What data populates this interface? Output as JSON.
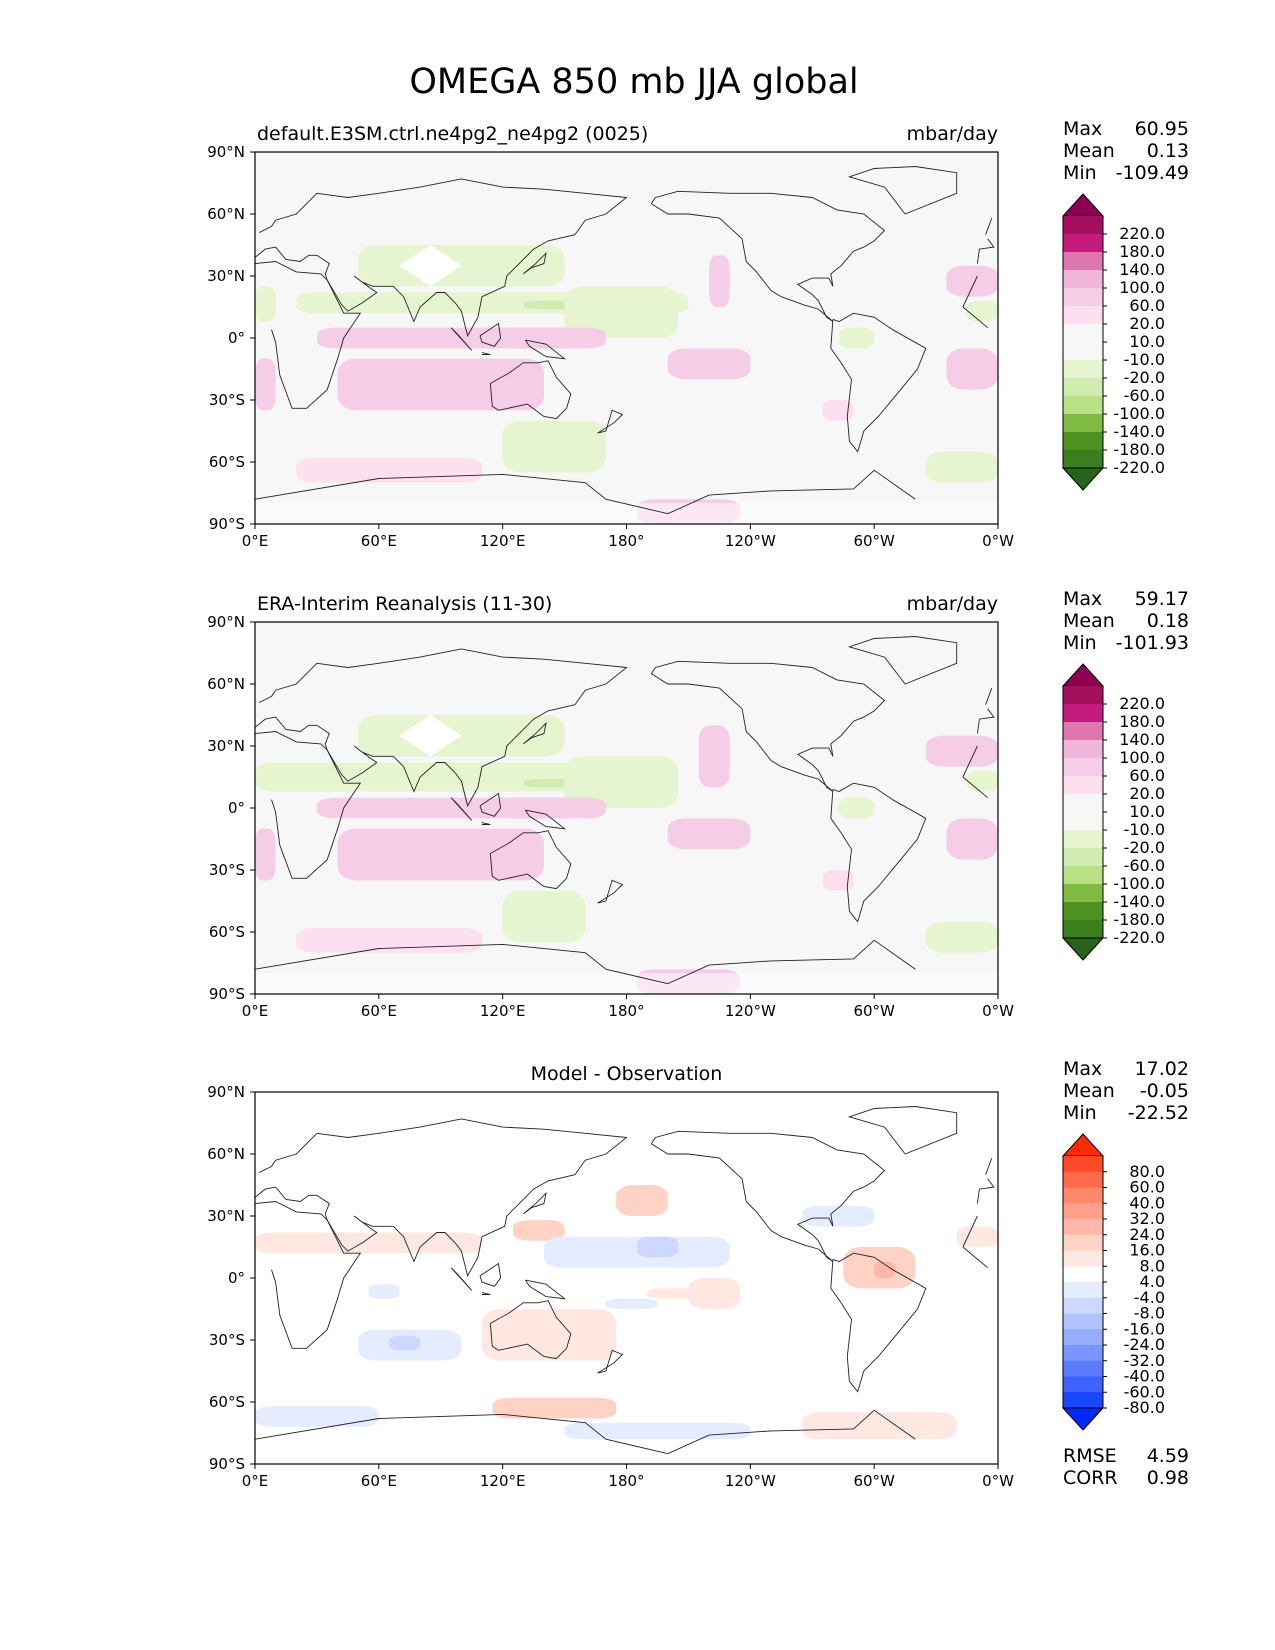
{
  "figure": {
    "title": "OMEGA 850 mb JJA global",
    "panels": [
      {
        "id": "test",
        "left_title": "default.E3SM.ctrl.ne4pg2_ne4pg2 (0025)",
        "center_title": "",
        "right_title": "mbar/day",
        "stats": [
          {
            "label": "Max",
            "value": "60.95"
          },
          {
            "label": "Mean",
            "value": "0.13"
          },
          {
            "label": "Min",
            "value": "-109.49"
          }
        ],
        "extra_stats": [],
        "colormap": "green-pink"
      },
      {
        "id": "reference",
        "left_title": "ERA-Interim Reanalysis (11-30)",
        "center_title": "",
        "right_title": "mbar/day",
        "stats": [
          {
            "label": "Max",
            "value": "59.17"
          },
          {
            "label": "Mean",
            "value": "0.18"
          },
          {
            "label": "Min",
            "value": "-101.93"
          }
        ],
        "extra_stats": [],
        "colormap": "green-pink"
      },
      {
        "id": "difference",
        "left_title": "",
        "center_title": "Model - Observation",
        "right_title": "",
        "stats": [
          {
            "label": "Max",
            "value": "17.02"
          },
          {
            "label": "Mean",
            "value": "-0.05"
          },
          {
            "label": "Min",
            "value": "-22.52"
          }
        ],
        "extra_stats": [
          {
            "label": "RMSE",
            "value": "4.59"
          },
          {
            "label": "CORR",
            "value": "0.98"
          }
        ],
        "colormap": "blue-red"
      }
    ],
    "colormaps": {
      "green-pink": {
        "labels": [
          "220.0",
          "180.0",
          "140.0",
          "100.0",
          "60.0",
          "20.0",
          "10.0",
          "-10.0",
          "-20.0",
          "-60.0",
          "-100.0",
          "-140.0",
          "-180.0",
          "-220.0"
        ],
        "colors": [
          "#8e0152",
          "#a3115e",
          "#c51b7d",
          "#de77ae",
          "#f1b6da",
          "#f5cde6",
          "#fde0ef",
          "#f7f7f7",
          "#f7f7f7",
          "#e6f5d0",
          "#d0ecb0",
          "#b8e186",
          "#7fbc41",
          "#4d9221",
          "#3a7e1d",
          "#276419"
        ]
      },
      "blue-red": {
        "labels": [
          "80.0",
          "60.0",
          "40.0",
          "32.0",
          "24.0",
          "16.0",
          "8.0",
          "4.0",
          "-4.0",
          "-8.0",
          "-16.0",
          "-24.0",
          "-32.0",
          "-40.0",
          "-60.0",
          "-80.0"
        ],
        "colors": [
          "#ff2a00",
          "#ff4a2a",
          "#ff6a4a",
          "#ff8a6a",
          "#ffa08a",
          "#ffb8a8",
          "#ffd2c6",
          "#ffe8e2",
          "#ffffff",
          "#e6ecff",
          "#ccd8ff",
          "#b0c2ff",
          "#96adff",
          "#7a96ff",
          "#5c7cff",
          "#3d62ff",
          "#1a46ff",
          "#0028ff"
        ]
      }
    },
    "axes": {
      "lon_ticks": [
        "0°E",
        "60°E",
        "120°E",
        "180°",
        "120°W",
        "60°W",
        "0°W"
      ],
      "lat_ticks": [
        "90°N",
        "60°N",
        "30°N",
        "0°",
        "30°S",
        "60°S",
        "90°S"
      ]
    }
  },
  "chart_data": [
    {
      "type": "heatmap",
      "title": "default.E3SM.ctrl.ne4pg2_ne4pg2 (0025)",
      "units": "mbar/day",
      "field": "OMEGA 850 mb JJA",
      "x": [
        "0°E",
        "60°E",
        "120°E",
        "180°",
        "120°W",
        "60°W",
        "0°W"
      ],
      "y": [
        "90°N",
        "60°N",
        "30°N",
        "0°",
        "30°S",
        "60°S",
        "90°S"
      ],
      "max": 60.95,
      "mean": 0.13,
      "min": -109.49,
      "contour_levels": [
        -220,
        -180,
        -140,
        -100,
        -60,
        -20,
        -10,
        10,
        20,
        60,
        100,
        140,
        180,
        220
      ],
      "regions": [
        {
          "lon": [
            0,
            360
          ],
          "lat": [
            -90,
            90
          ],
          "value": 0
        },
        {
          "lon": [
            20,
            210
          ],
          "lat": [
            12,
            22
          ],
          "value": -40
        },
        {
          "lon": [
            130,
            160
          ],
          "lat": [
            14,
            18
          ],
          "value": -80
        },
        {
          "lon": [
            150,
            205
          ],
          "lat": [
            0,
            25
          ],
          "value": -30
        },
        {
          "lon": [
            0,
            10
          ],
          "lat": [
            8,
            25
          ],
          "value": -30
        },
        {
          "lon": [
            50,
            150
          ],
          "lat": [
            25,
            45
          ],
          "value": -30
        },
        {
          "lon": [
            283,
            300
          ],
          "lat": [
            -5,
            5
          ],
          "value": -30
        },
        {
          "lon": [
            345,
            360
          ],
          "lat": [
            8,
            18
          ],
          "value": -30
        },
        {
          "lon": [
            120,
            170
          ],
          "lat": [
            -65,
            -40
          ],
          "value": -30
        },
        {
          "lon": [
            325,
            360
          ],
          "lat": [
            -70,
            -55
          ],
          "value": -30
        },
        {
          "lon": [
            30,
            160
          ],
          "lat": [
            -5,
            5
          ],
          "value": 30
        },
        {
          "lon": [
            40,
            140
          ],
          "lat": [
            -35,
            -10
          ],
          "value": 20
        },
        {
          "lon": [
            115,
            170
          ],
          "lat": [
            -5,
            5
          ],
          "value": 40
        },
        {
          "lon": [
            0,
            10
          ],
          "lat": [
            -35,
            -10
          ],
          "value": 30
        },
        {
          "lon": [
            200,
            240
          ],
          "lat": [
            -20,
            -5
          ],
          "value": 30
        },
        {
          "lon": [
            335,
            360
          ],
          "lat": [
            -25,
            -5
          ],
          "value": 30
        },
        {
          "lon": [
            335,
            360
          ],
          "lat": [
            20,
            35
          ],
          "value": 30
        },
        {
          "lon": [
            185,
            235
          ],
          "lat": [
            -90,
            -78
          ],
          "value": 20
        },
        {
          "lon": [
            20,
            110
          ],
          "lat": [
            -70,
            -58
          ],
          "value": 15
        },
        {
          "lon": [
            220,
            230
          ],
          "lat": [
            15,
            40
          ],
          "value": 20
        },
        {
          "lon": [
            275,
            290
          ],
          "lat": [
            -40,
            -30
          ],
          "value": 15
        }
      ],
      "missing": [
        {
          "lon": [
            70,
            100
          ],
          "lat": [
            25,
            45
          ]
        },
        {
          "lon": [
            0,
            360
          ],
          "lat": [
            -90,
            -78
          ]
        }
      ]
    },
    {
      "type": "heatmap",
      "title": "ERA-Interim Reanalysis (11-30)",
      "units": "mbar/day",
      "field": "OMEGA 850 mb JJA",
      "x": [
        "0°E",
        "60°E",
        "120°E",
        "180°",
        "120°W",
        "60°W",
        "0°W"
      ],
      "y": [
        "90°N",
        "60°N",
        "30°N",
        "0°",
        "30°S",
        "60°S",
        "90°S"
      ],
      "max": 59.17,
      "mean": 0.18,
      "min": -101.93,
      "contour_levels": [
        -220,
        -180,
        -140,
        -100,
        -60,
        -20,
        -10,
        10,
        20,
        60,
        100,
        140,
        180,
        220
      ],
      "regions": [
        {
          "lon": [
            0,
            360
          ],
          "lat": [
            -90,
            90
          ],
          "value": 0
        },
        {
          "lon": [
            0,
            200
          ],
          "lat": [
            8,
            22
          ],
          "value": -40
        },
        {
          "lon": [
            130,
            170
          ],
          "lat": [
            10,
            14
          ],
          "value": -80
        },
        {
          "lon": [
            150,
            205
          ],
          "lat": [
            0,
            25
          ],
          "value": -30
        },
        {
          "lon": [
            50,
            150
          ],
          "lat": [
            25,
            45
          ],
          "value": -30
        },
        {
          "lon": [
            283,
            300
          ],
          "lat": [
            -5,
            5
          ],
          "value": -40
        },
        {
          "lon": [
            345,
            360
          ],
          "lat": [
            8,
            18
          ],
          "value": -30
        },
        {
          "lon": [
            120,
            160
          ],
          "lat": [
            -65,
            -40
          ],
          "value": -30
        },
        {
          "lon": [
            325,
            360
          ],
          "lat": [
            -70,
            -55
          ],
          "value": -30
        },
        {
          "lon": [
            30,
            160
          ],
          "lat": [
            -5,
            5
          ],
          "value": 30
        },
        {
          "lon": [
            40,
            140
          ],
          "lat": [
            -35,
            -10
          ],
          "value": 20
        },
        {
          "lon": [
            115,
            170
          ],
          "lat": [
            -5,
            5
          ],
          "value": 40
        },
        {
          "lon": [
            0,
            10
          ],
          "lat": [
            -35,
            -10
          ],
          "value": 30
        },
        {
          "lon": [
            200,
            240
          ],
          "lat": [
            -20,
            -5
          ],
          "value": 30
        },
        {
          "lon": [
            335,
            360
          ],
          "lat": [
            -25,
            -5
          ],
          "value": 30
        },
        {
          "lon": [
            325,
            360
          ],
          "lat": [
            20,
            35
          ],
          "value": 30
        },
        {
          "lon": [
            185,
            235
          ],
          "lat": [
            -90,
            -78
          ],
          "value": 20
        },
        {
          "lon": [
            20,
            110
          ],
          "lat": [
            -70,
            -58
          ],
          "value": 15
        },
        {
          "lon": [
            215,
            230
          ],
          "lat": [
            10,
            40
          ],
          "value": 20
        },
        {
          "lon": [
            275,
            290
          ],
          "lat": [
            -40,
            -30
          ],
          "value": 15
        }
      ],
      "missing": [
        {
          "lon": [
            70,
            100
          ],
          "lat": [
            25,
            45
          ]
        },
        {
          "lon": [
            0,
            360
          ],
          "lat": [
            -90,
            -78
          ]
        }
      ]
    },
    {
      "type": "heatmap",
      "title": "Model - Observation",
      "units": "mbar/day",
      "field": "OMEGA 850 mb JJA difference",
      "x": [
        "0°E",
        "60°E",
        "120°E",
        "180°",
        "120°W",
        "60°W",
        "0°W"
      ],
      "y": [
        "90°N",
        "60°N",
        "30°N",
        "0°",
        "30°S",
        "60°S",
        "90°S"
      ],
      "max": 17.02,
      "mean": -0.05,
      "min": -22.52,
      "rmse": 4.59,
      "corr": 0.98,
      "contour_levels": [
        -80,
        -60,
        -40,
        -32,
        -24,
        -16,
        -8,
        -4,
        4,
        8,
        16,
        24,
        32,
        40,
        60,
        80
      ],
      "regions": [
        {
          "lon": [
            0,
            360
          ],
          "lat": [
            -90,
            90
          ],
          "value": 0
        },
        {
          "lon": [
            0,
            110
          ],
          "lat": [
            12,
            22
          ],
          "value": 6
        },
        {
          "lon": [
            125,
            150
          ],
          "lat": [
            18,
            28
          ],
          "value": 8
        },
        {
          "lon": [
            175,
            200
          ],
          "lat": [
            30,
            45
          ],
          "value": 12
        },
        {
          "lon": [
            140,
            230
          ],
          "lat": [
            5,
            20
          ],
          "value": -8
        },
        {
          "lon": [
            185,
            205
          ],
          "lat": [
            10,
            20
          ],
          "value": -16
        },
        {
          "lon": [
            285,
            320
          ],
          "lat": [
            -5,
            15
          ],
          "value": 8
        },
        {
          "lon": [
            300,
            310
          ],
          "lat": [
            0,
            8
          ],
          "value": 16
        },
        {
          "lon": [
            190,
            220
          ],
          "lat": [
            -10,
            -5
          ],
          "value": 5
        },
        {
          "lon": [
            210,
            235
          ],
          "lat": [
            -15,
            0
          ],
          "value": 5
        },
        {
          "lon": [
            340,
            360
          ],
          "lat": [
            15,
            25
          ],
          "value": 5
        },
        {
          "lon": [
            265,
            300
          ],
          "lat": [
            25,
            35
          ],
          "value": -6
        },
        {
          "lon": [
            50,
            100
          ],
          "lat": [
            -40,
            -25
          ],
          "value": -6
        },
        {
          "lon": [
            65,
            80
          ],
          "lat": [
            -35,
            -28
          ],
          "value": -12
        },
        {
          "lon": [
            55,
            70
          ],
          "lat": [
            -10,
            -3
          ],
          "value": -6
        },
        {
          "lon": [
            170,
            195
          ],
          "lat": [
            -15,
            -10
          ],
          "value": -5
        },
        {
          "lon": [
            110,
            175
          ],
          "lat": [
            -40,
            -15
          ],
          "value": 6
        },
        {
          "lon": [
            0,
            60
          ],
          "lat": [
            -72,
            -62
          ],
          "value": -8
        },
        {
          "lon": [
            115,
            175
          ],
          "lat": [
            -68,
            -58
          ],
          "value": 8
        },
        {
          "lon": [
            150,
            240
          ],
          "lat": [
            -78,
            -70
          ],
          "value": -8
        },
        {
          "lon": [
            265,
            340
          ],
          "lat": [
            -78,
            -65
          ],
          "value": 6
        }
      ],
      "missing": []
    }
  ]
}
